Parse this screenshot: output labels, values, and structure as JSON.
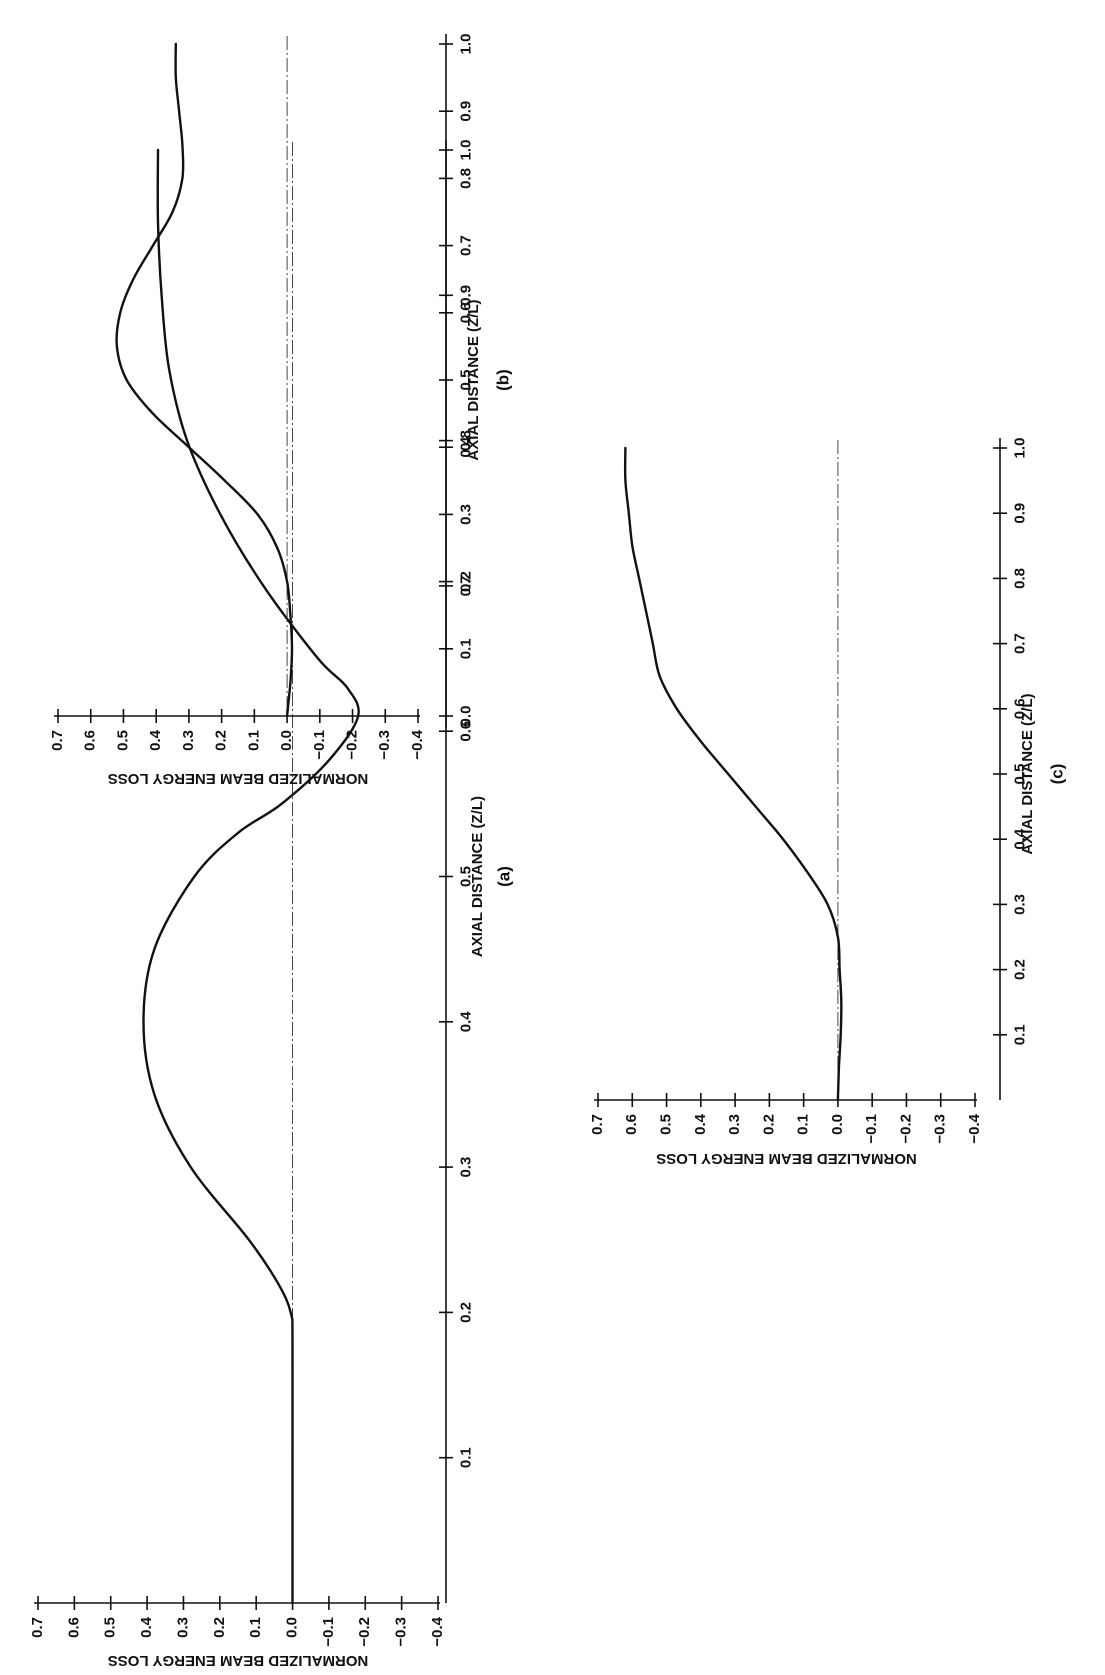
{
  "chart_data": [
    {
      "type": "line",
      "panel_label": "(a)",
      "xlabel": "AXIAL DISTANCE (Z/L)",
      "ylabel": "NORMALIZED BEAM ENERGY LOSS",
      "xticks": [
        "0.1",
        "0.2",
        "0.3",
        "0.4",
        "0.5",
        "0.6",
        "0.7",
        "0.8",
        "0.9",
        "1.0"
      ],
      "yticks": [
        "0.7",
        "0.6",
        "0.5",
        "0.4",
        "0.3",
        "0.2",
        "0.1",
        "0.0",
        "-0.1",
        "-0.2",
        "-0.3",
        "-0.4"
      ],
      "xlim": [
        0.0,
        1.0
      ],
      "ylim": [
        -0.4,
        0.7
      ],
      "x": [
        0.0,
        0.1,
        0.18,
        0.2,
        0.22,
        0.25,
        0.3,
        0.35,
        0.4,
        0.45,
        0.5,
        0.53,
        0.55,
        0.58,
        0.61,
        0.63,
        0.65,
        0.7,
        0.75,
        0.8,
        0.85,
        0.9,
        0.95,
        1.0
      ],
      "y": [
        0.0,
        0.0,
        0.0,
        0.005,
        0.04,
        0.12,
        0.28,
        0.38,
        0.41,
        0.38,
        0.27,
        0.15,
        0.03,
        -0.1,
        -0.18,
        -0.15,
        -0.07,
        0.08,
        0.2,
        0.29,
        0.34,
        0.36,
        0.37,
        0.37
      ]
    },
    {
      "type": "line",
      "panel_label": "(b)",
      "xlabel": "AXIAL DISTANCE (Z/L)",
      "ylabel": "NORMALIZED BEAM ENERGY LOSS",
      "xticks": [
        "0.0",
        "0.1",
        "0.2",
        "0.3",
        "0.4",
        "0.5",
        "0.6",
        "0.7",
        "0.8",
        "0.9",
        "1.0"
      ],
      "yticks": [
        "0.7",
        "0.6",
        "0.5",
        "0.4",
        "0.3",
        "0.2",
        "0.1",
        "0.0",
        "-0.1",
        "-0.2",
        "-0.3",
        "-0.4"
      ],
      "xlim": [
        0.0,
        1.0
      ],
      "ylim": [
        -0.4,
        0.7
      ],
      "x": [
        0.0,
        0.05,
        0.1,
        0.15,
        0.2,
        0.25,
        0.3,
        0.35,
        0.4,
        0.45,
        0.5,
        0.55,
        0.6,
        0.65,
        0.7,
        0.75,
        0.8,
        0.85,
        0.9,
        0.95,
        1.0
      ],
      "y": [
        0.0,
        -0.01,
        -0.015,
        -0.01,
        0.0,
        0.03,
        0.09,
        0.19,
        0.3,
        0.41,
        0.49,
        0.52,
        0.51,
        0.47,
        0.41,
        0.35,
        0.32,
        0.32,
        0.33,
        0.34,
        0.34
      ]
    },
    {
      "type": "line",
      "panel_label": "(c)",
      "xlabel": "AXIAL DISTANCE (Z/L)",
      "ylabel": "NORMALIZED BEAM ENERGY LOSS",
      "xticks": [
        "0.1",
        "0.2",
        "0.3",
        "0.4",
        "0.5",
        "0.6",
        "0.7",
        "0.8",
        "0.9",
        "1.0"
      ],
      "yticks": [
        "0.7",
        "0.6",
        "0.5",
        "0.4",
        "0.3",
        "0.2",
        "0.1",
        "0.0",
        "-0.1",
        "-0.2",
        "-0.3",
        "-0.4"
      ],
      "xlim": [
        0.0,
        1.0
      ],
      "ylim": [
        -0.4,
        0.7
      ],
      "x": [
        0.0,
        0.05,
        0.1,
        0.15,
        0.2,
        0.25,
        0.3,
        0.35,
        0.4,
        0.45,
        0.5,
        0.55,
        0.6,
        0.65,
        0.7,
        0.75,
        0.8,
        0.85,
        0.9,
        0.95,
        1.0
      ],
      "y": [
        0.0,
        -0.003,
        -0.008,
        -0.01,
        -0.005,
        0.0,
        0.03,
        0.09,
        0.16,
        0.24,
        0.32,
        0.4,
        0.47,
        0.52,
        0.54,
        0.56,
        0.58,
        0.6,
        0.61,
        0.62,
        0.62
      ]
    }
  ]
}
